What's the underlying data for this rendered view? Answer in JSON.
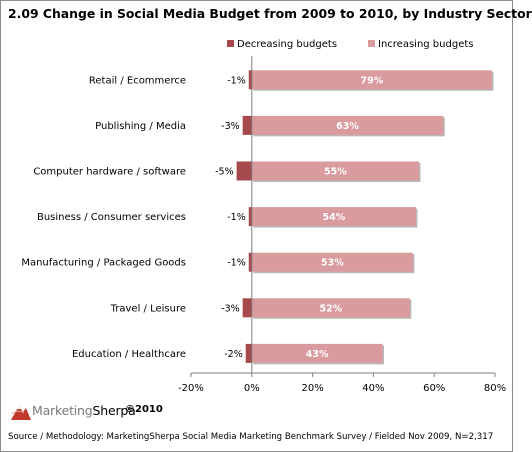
{
  "title": "2.09 Change in Social Media Budget from 2009 to 2010, by Industry Sector",
  "source": "Source / Methodology: MarketingSherpa Social Media Marketing Benchmark Survey / Fielded Nov 2009, N=2,317",
  "logo": {
    "part1": "Marketing",
    "part2": "Sherpa",
    "copyright": "©2010"
  },
  "colors": {
    "decreasing": "#a5494c",
    "increasing": "#d99b9d"
  },
  "chart_data": {
    "type": "bar",
    "orientation": "horizontal",
    "stacked": true,
    "legend_position": "top-right",
    "grid": false,
    "xlim": [
      -20,
      80
    ],
    "x_ticks": [
      -20,
      0,
      20,
      40,
      60,
      80
    ],
    "x_tick_labels": [
      "-20%",
      "0%",
      "20%",
      "40%",
      "60%",
      "80%"
    ],
    "categories": [
      "Retail / Ecommerce",
      "Publishing / Media",
      "Computer hardware / software",
      "Business / Consumer services",
      "Manufacturing / Packaged Goods",
      "Travel / Leisure",
      "Education / Healthcare"
    ],
    "series": [
      {
        "name": "Decreasing budgets",
        "values": [
          -1,
          -3,
          -5,
          -1,
          -1,
          -3,
          -2
        ],
        "labels": [
          "-1%",
          "-3%",
          "-5%",
          "-1%",
          "-1%",
          "-3%",
          "-2%"
        ]
      },
      {
        "name": "Increasing budgets",
        "values": [
          79,
          63,
          55,
          54,
          53,
          52,
          43
        ],
        "labels": [
          "79%",
          "63%",
          "55%",
          "54%",
          "53%",
          "52%",
          "43%"
        ]
      }
    ]
  }
}
